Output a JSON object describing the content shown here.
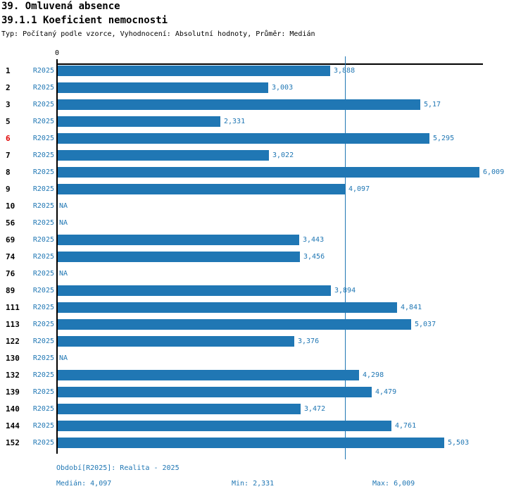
{
  "header": {
    "title": "39. Omluvená absence",
    "subtitle": "39.1.1 Koeficient nemocnosti",
    "meta": "Typ: Počítaný podle vzorce, Vyhodnocení: Absolutní hodnoty, Průměr: Medián"
  },
  "chart_data": {
    "type": "bar",
    "orientation": "horizontal",
    "title": "39.1.1 Koeficient nemocnosti",
    "series_label": "R2025",
    "axis_zero_label": "0",
    "x_axis_min": 0,
    "x_axis_max": 6.056,
    "median_value": 4.097,
    "min_value": 2.331,
    "max_value": 6.009,
    "categories": [
      "1",
      "2",
      "3",
      "5",
      "6",
      "7",
      "8",
      "9",
      "10",
      "56",
      "69",
      "74",
      "76",
      "89",
      "111",
      "113",
      "122",
      "130",
      "132",
      "139",
      "140",
      "144",
      "152"
    ],
    "rows": [
      {
        "label": "1",
        "period": "R2025",
        "value": 3.888,
        "display": "3,888",
        "highlight": false
      },
      {
        "label": "2",
        "period": "R2025",
        "value": 3.003,
        "display": "3,003",
        "highlight": false
      },
      {
        "label": "3",
        "period": "R2025",
        "value": 5.17,
        "display": "5,17",
        "highlight": false
      },
      {
        "label": "5",
        "period": "R2025",
        "value": 2.331,
        "display": "2,331",
        "highlight": false
      },
      {
        "label": "6",
        "period": "R2025",
        "value": 5.295,
        "display": "5,295",
        "highlight": true
      },
      {
        "label": "7",
        "period": "R2025",
        "value": 3.022,
        "display": "3,022",
        "highlight": false
      },
      {
        "label": "8",
        "period": "R2025",
        "value": 6.009,
        "display": "6,009",
        "highlight": false
      },
      {
        "label": "9",
        "period": "R2025",
        "value": 4.097,
        "display": "4,097",
        "highlight": false
      },
      {
        "label": "10",
        "period": "R2025",
        "value": null,
        "display": "NA",
        "highlight": false
      },
      {
        "label": "56",
        "period": "R2025",
        "value": null,
        "display": "NA",
        "highlight": false
      },
      {
        "label": "69",
        "period": "R2025",
        "value": 3.443,
        "display": "3,443",
        "highlight": false
      },
      {
        "label": "74",
        "period": "R2025",
        "value": 3.456,
        "display": "3,456",
        "highlight": false
      },
      {
        "label": "76",
        "period": "R2025",
        "value": null,
        "display": "NA",
        "highlight": false
      },
      {
        "label": "89",
        "period": "R2025",
        "value": 3.894,
        "display": "3,894",
        "highlight": false
      },
      {
        "label": "111",
        "period": "R2025",
        "value": 4.841,
        "display": "4,841",
        "highlight": false
      },
      {
        "label": "113",
        "period": "R2025",
        "value": 5.037,
        "display": "5,037",
        "highlight": false
      },
      {
        "label": "122",
        "period": "R2025",
        "value": 3.376,
        "display": "3,376",
        "highlight": false
      },
      {
        "label": "130",
        "period": "R2025",
        "value": null,
        "display": "NA",
        "highlight": false
      },
      {
        "label": "132",
        "period": "R2025",
        "value": 4.298,
        "display": "4,298",
        "highlight": false
      },
      {
        "label": "139",
        "period": "R2025",
        "value": 4.479,
        "display": "4,479",
        "highlight": false
      },
      {
        "label": "140",
        "period": "R2025",
        "value": 3.472,
        "display": "3,472",
        "highlight": false
      },
      {
        "label": "144",
        "period": "R2025",
        "value": 4.761,
        "display": "4,761",
        "highlight": false
      },
      {
        "label": "152",
        "period": "R2025",
        "value": 5.503,
        "display": "5,503",
        "highlight": false
      }
    ]
  },
  "footer": {
    "period_info": "Období[R2025]: Realita - 2025",
    "median_label": "Medián: 4,097",
    "min_label": "Min: 2,331",
    "max_label": "Max: 6,009"
  },
  "colors": {
    "bar": "#2077b4",
    "text_blue": "#2077b4",
    "highlight_red": "#e00000",
    "axis": "#000000"
  }
}
